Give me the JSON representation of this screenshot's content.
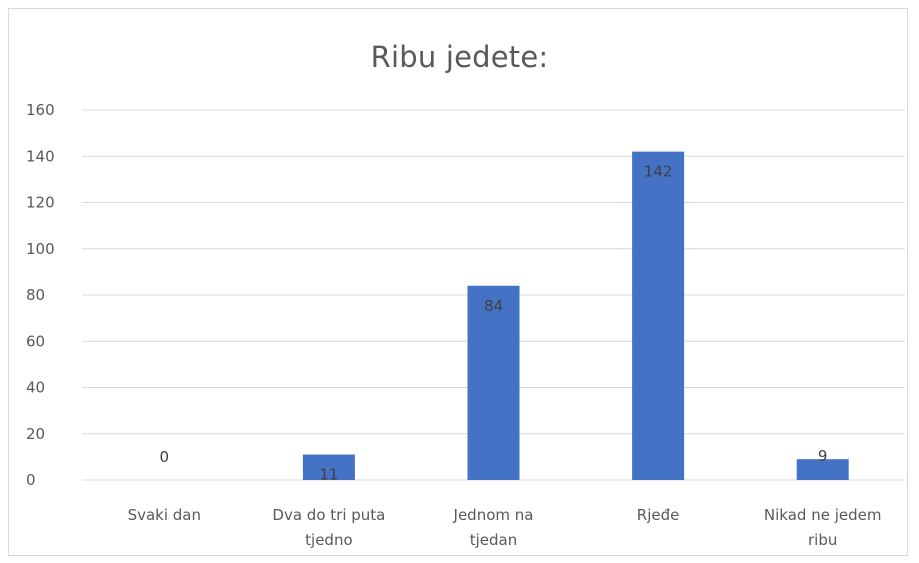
{
  "chart_data": {
    "type": "bar",
    "title": "Ribu jedete:",
    "categories": [
      [
        "Svaki dan"
      ],
      [
        "Dva do tri puta",
        "tjedno"
      ],
      [
        "Jednom na",
        "tjedan"
      ],
      [
        "Rjeđe"
      ],
      [
        "Nikad ne jedem",
        "ribu"
      ]
    ],
    "values": [
      0,
      11,
      84,
      142,
      9
    ],
    "data_labels": [
      "0",
      "11",
      "84",
      "142",
      "9"
    ],
    "y_ticks": [
      0,
      20,
      40,
      60,
      80,
      100,
      120,
      140,
      160
    ],
    "ylim": [
      0,
      160
    ],
    "xlabel": "",
    "ylabel": "",
    "grid": true,
    "bar_color": "#4472c4",
    "grid_color": "#d9d9d9"
  }
}
